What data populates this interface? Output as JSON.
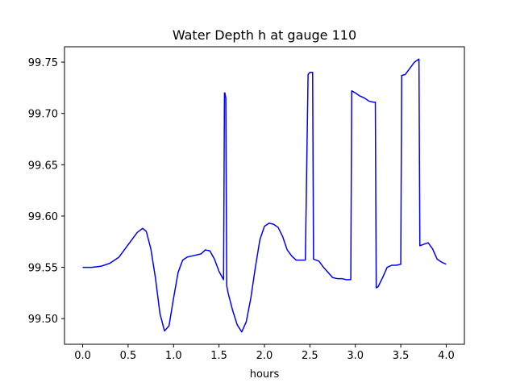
{
  "chart_data": {
    "type": "line",
    "title": "Water Depth h at gauge 110",
    "xlabel": "hours",
    "ylabel": "",
    "xlim": [
      -0.2,
      4.2
    ],
    "ylim": [
      99.475,
      99.765
    ],
    "xticks": [
      0.0,
      0.5,
      1.0,
      1.5,
      2.0,
      2.5,
      3.0,
      3.5,
      4.0
    ],
    "xtick_labels": [
      "0.0",
      "0.5",
      "1.0",
      "1.5",
      "2.0",
      "2.5",
      "3.0",
      "3.5",
      "4.0"
    ],
    "yticks": [
      99.5,
      99.55,
      99.6,
      99.65,
      99.7,
      99.75
    ],
    "ytick_labels": [
      "99.50",
      "99.55",
      "99.60",
      "99.65",
      "99.70",
      "99.75"
    ],
    "grid": false,
    "series": [
      {
        "color": "#0000ff",
        "x": [
          0.0,
          0.1,
          0.2,
          0.3,
          0.4,
          0.5,
          0.6,
          0.66,
          0.7,
          0.75,
          0.8,
          0.85,
          0.9,
          0.95,
          1.0,
          1.05,
          1.1,
          1.15,
          1.2,
          1.3,
          1.35,
          1.4,
          1.45,
          1.5,
          1.55,
          1.56,
          1.565,
          1.575,
          1.585,
          1.6,
          1.65,
          1.7,
          1.75,
          1.8,
          1.85,
          1.9,
          1.95,
          2.0,
          2.05,
          2.1,
          2.15,
          2.2,
          2.25,
          2.3,
          2.35,
          2.4,
          2.45,
          2.48,
          2.49,
          2.5,
          2.53,
          2.54,
          2.6,
          2.65,
          2.7,
          2.75,
          2.8,
          2.85,
          2.9,
          2.95,
          2.96,
          3.0,
          3.05,
          3.1,
          3.15,
          3.2,
          3.22,
          3.23,
          3.25,
          3.3,
          3.35,
          3.4,
          3.45,
          3.5,
          3.51,
          3.55,
          3.6,
          3.65,
          3.7,
          3.71,
          3.8,
          3.85,
          3.9,
          3.95,
          4.0
        ],
        "values": [
          99.55,
          99.55,
          99.551,
          99.554,
          99.56,
          99.572,
          99.584,
          99.588,
          99.585,
          99.568,
          99.54,
          99.505,
          99.488,
          99.493,
          99.52,
          99.545,
          99.557,
          99.56,
          99.561,
          99.563,
          99.567,
          99.566,
          99.558,
          99.546,
          99.538,
          99.72,
          99.72,
          99.715,
          99.532,
          99.525,
          99.508,
          99.494,
          99.487,
          99.497,
          99.52,
          99.55,
          99.577,
          99.59,
          99.593,
          99.592,
          99.589,
          99.58,
          99.567,
          99.561,
          99.557,
          99.557,
          99.557,
          99.738,
          99.739,
          99.74,
          99.74,
          99.558,
          99.556,
          99.55,
          99.545,
          99.54,
          99.539,
          99.539,
          99.538,
          99.538,
          99.722,
          99.72,
          99.717,
          99.715,
          99.712,
          99.711,
          99.711,
          99.53,
          99.531,
          99.54,
          99.55,
          99.552,
          99.552,
          99.553,
          99.737,
          99.738,
          99.744,
          99.75,
          99.753,
          99.571,
          99.574,
          99.568,
          99.558,
          99.555,
          99.553
        ]
      }
    ]
  }
}
